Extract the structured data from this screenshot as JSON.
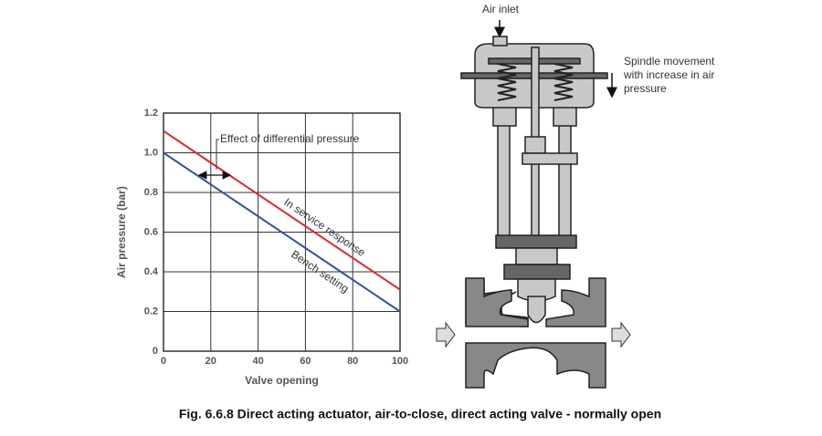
{
  "chart_data": {
    "type": "line",
    "x_label": "Valve opening",
    "y_label": "Air pressure (bar)",
    "x": [
      0,
      100
    ],
    "series": [
      {
        "name": "In service response",
        "color": "#e0262b",
        "values": [
          1.11,
          0.31
        ]
      },
      {
        "name": "Bench setting",
        "color": "#3a4fa0",
        "values": [
          1.0,
          0.2
        ]
      }
    ],
    "annotation": "Effect of differential pressure",
    "xlim": [
      0,
      100
    ],
    "xticks": [
      0,
      20,
      40,
      60,
      80,
      100
    ],
    "ylim": [
      0,
      1.2
    ],
    "yticks": [
      0,
      0.2,
      0.4,
      0.6,
      0.8,
      {
        "value": 1,
        "label": "1.0"
      },
      1.2
    ],
    "grid": true
  },
  "diagram": {
    "air_inlet": "Air inlet",
    "spindle_note": [
      "Spindle movement",
      "with increase in air",
      "pressure"
    ]
  },
  "caption": "Fig. 6.6.8 Direct acting actuator, air-to-close, direct acting valve - normally open"
}
